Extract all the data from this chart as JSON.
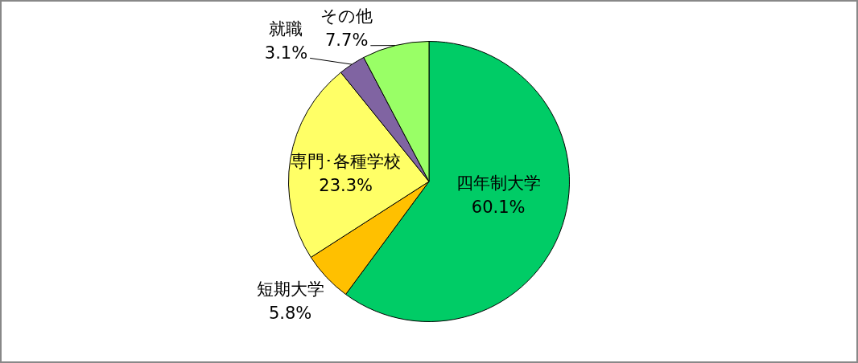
{
  "chart_data": {
    "type": "pie",
    "categories": [
      "四年制大学",
      "短期大学",
      "専門･各種学校",
      "就職",
      "その他"
    ],
    "values": [
      60.1,
      5.8,
      23.3,
      3.1,
      7.7
    ],
    "colors": [
      "#00cc66",
      "#ffc000",
      "#ffff66",
      "#8064a2",
      "#99ff66"
    ],
    "value_labels": [
      "60.1%",
      "5.8%",
      "23.3%",
      "3.1%",
      "7.7%"
    ]
  }
}
